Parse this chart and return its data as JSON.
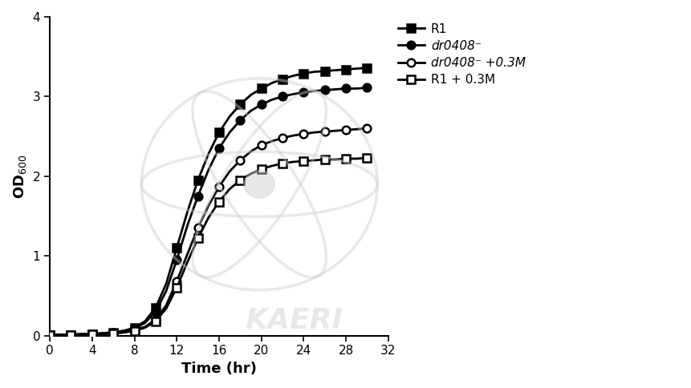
{
  "xlabel": "Time (hr)",
  "ylabel": "OD$_{600}$",
  "xlim": [
    0,
    32
  ],
  "ylim": [
    0,
    4
  ],
  "xticks": [
    0,
    4,
    8,
    12,
    16,
    20,
    24,
    28,
    32
  ],
  "yticks": [
    0,
    1,
    2,
    3,
    4
  ],
  "series": [
    {
      "label": "R1",
      "marker": "s",
      "filled": true,
      "color": "#000000",
      "x": [
        0,
        1,
        2,
        3,
        4,
        5,
        6,
        7,
        8,
        9,
        10,
        11,
        12,
        13,
        14,
        15,
        16,
        17,
        18,
        19,
        20,
        21,
        22,
        23,
        24,
        25,
        26,
        27,
        28,
        29,
        30
      ],
      "y": [
        0.01,
        0.01,
        0.01,
        0.02,
        0.02,
        0.03,
        0.04,
        0.06,
        0.1,
        0.18,
        0.35,
        0.65,
        1.1,
        1.55,
        1.95,
        2.28,
        2.55,
        2.75,
        2.9,
        3.02,
        3.1,
        3.17,
        3.22,
        3.26,
        3.29,
        3.31,
        3.32,
        3.33,
        3.34,
        3.35,
        3.36
      ]
    },
    {
      "label": "dr0408⁻",
      "marker": "o",
      "filled": true,
      "color": "#000000",
      "x": [
        0,
        1,
        2,
        3,
        4,
        5,
        6,
        7,
        8,
        9,
        10,
        11,
        12,
        13,
        14,
        15,
        16,
        17,
        18,
        19,
        20,
        21,
        22,
        23,
        24,
        25,
        26,
        27,
        28,
        29,
        30
      ],
      "y": [
        0.01,
        0.01,
        0.01,
        0.02,
        0.02,
        0.03,
        0.04,
        0.06,
        0.09,
        0.16,
        0.3,
        0.56,
        0.95,
        1.38,
        1.75,
        2.08,
        2.35,
        2.55,
        2.7,
        2.82,
        2.9,
        2.96,
        3.0,
        3.03,
        3.05,
        3.07,
        3.08,
        3.09,
        3.1,
        3.1,
        3.11
      ]
    },
    {
      "label": "dr0408⁻ +0.3M",
      "marker": "o",
      "filled": false,
      "color": "#000000",
      "x": [
        0,
        1,
        2,
        3,
        4,
        5,
        6,
        7,
        8,
        9,
        10,
        11,
        12,
        13,
        14,
        15,
        16,
        17,
        18,
        19,
        20,
        21,
        22,
        23,
        24,
        25,
        26,
        27,
        28,
        29,
        30
      ],
      "y": [
        0.01,
        0.01,
        0.01,
        0.01,
        0.02,
        0.02,
        0.03,
        0.04,
        0.07,
        0.11,
        0.2,
        0.38,
        0.68,
        1.02,
        1.35,
        1.63,
        1.87,
        2.06,
        2.2,
        2.31,
        2.39,
        2.44,
        2.48,
        2.51,
        2.53,
        2.55,
        2.56,
        2.57,
        2.58,
        2.59,
        2.6
      ]
    },
    {
      "label": "R1 + 0.3M",
      "marker": "s",
      "filled": false,
      "color": "#000000",
      "x": [
        0,
        1,
        2,
        3,
        4,
        5,
        6,
        7,
        8,
        9,
        10,
        11,
        12,
        13,
        14,
        15,
        16,
        17,
        18,
        19,
        20,
        21,
        22,
        23,
        24,
        25,
        26,
        27,
        28,
        29,
        30
      ],
      "y": [
        0.01,
        0.01,
        0.01,
        0.01,
        0.02,
        0.02,
        0.03,
        0.04,
        0.06,
        0.1,
        0.18,
        0.34,
        0.6,
        0.92,
        1.22,
        1.48,
        1.68,
        1.84,
        1.95,
        2.03,
        2.09,
        2.13,
        2.16,
        2.18,
        2.19,
        2.2,
        2.21,
        2.21,
        2.22,
        2.22,
        2.23
      ]
    }
  ],
  "background_color": "#ffffff",
  "line_width": 2.0,
  "marker_size": 7,
  "legend_fontsize": 11,
  "axis_fontsize": 13,
  "tick_fontsize": 11,
  "watermark_color": "#cccccc",
  "watermark_alpha": 0.45
}
